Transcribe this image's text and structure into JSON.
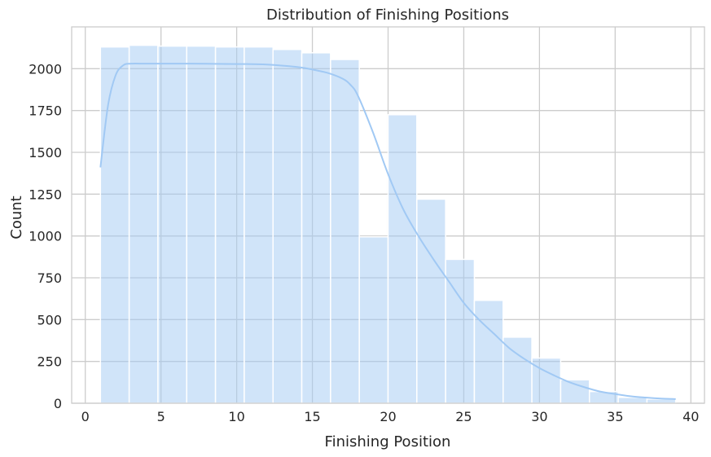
{
  "chart_data": {
    "type": "bar",
    "title": "Distribution of Finishing Positions",
    "xlabel": "Finishing Position",
    "ylabel": "Count",
    "xlim": [
      -0.9,
      40.9
    ],
    "ylim": [
      0,
      2250
    ],
    "xticks": [
      0,
      5,
      10,
      15,
      20,
      25,
      30,
      35,
      40
    ],
    "yticks": [
      0,
      250,
      500,
      750,
      1000,
      1250,
      1500,
      1750,
      2000
    ],
    "grid": true,
    "bin_edges": [
      1,
      2.9,
      4.8,
      6.7,
      8.6,
      10.5,
      12.4,
      14.3,
      16.2,
      18.1,
      20,
      21.9,
      23.8,
      25.7,
      27.6,
      29.5,
      31.4,
      33.3,
      35.2,
      37.1,
      39
    ],
    "values": [
      2130,
      2140,
      2135,
      2135,
      2130,
      2130,
      2115,
      2095,
      2055,
      995,
      1725,
      1220,
      860,
      615,
      395,
      270,
      140,
      70,
      35,
      25
    ],
    "kde": {
      "x": [
        1,
        1.5,
        2,
        2.5,
        3,
        4,
        5,
        7,
        10,
        12,
        14,
        15,
        16,
        17,
        17.5,
        18,
        19,
        20,
        21,
        22,
        23,
        24,
        25,
        26,
        27,
        28,
        29,
        30,
        31,
        32,
        33,
        34,
        35,
        36,
        37,
        38,
        39
      ],
      "y": [
        1410,
        1780,
        1960,
        2020,
        2030,
        2030,
        2030,
        2030,
        2028,
        2025,
        2010,
        1995,
        1975,
        1940,
        1905,
        1840,
        1620,
        1370,
        1160,
        1000,
        860,
        730,
        600,
        500,
        415,
        330,
        265,
        210,
        165,
        125,
        95,
        70,
        55,
        42,
        34,
        28,
        25
      ]
    },
    "colors": {
      "bar_fill": "#a1c9f4",
      "bar_opacity": 0.5,
      "bar_edge": "#ffffff",
      "kde_line": "#a1c9f4",
      "grid": "#cccccc",
      "frame": "#cccccc",
      "text": "#262626"
    }
  }
}
